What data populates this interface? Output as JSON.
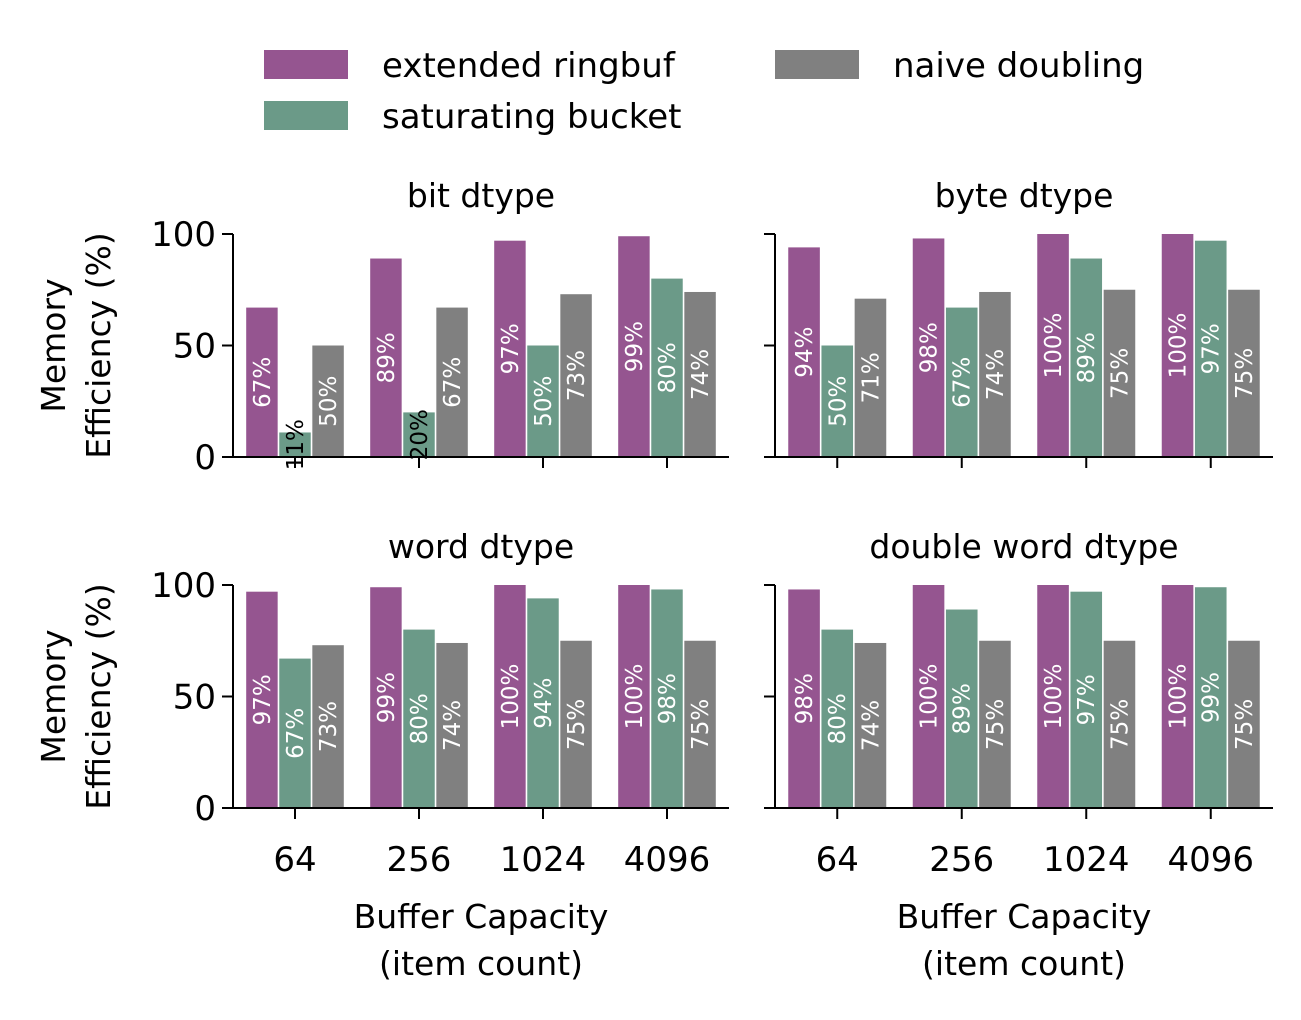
{
  "legend": {
    "items": [
      {
        "label": "extended ringbuf",
        "color": "#955590"
      },
      {
        "label": "saturating bucket",
        "color": "#6b9a88"
      },
      {
        "label": "naive doubling",
        "color": "#808080"
      }
    ]
  },
  "chart_data": {
    "type": "bar",
    "categories": [
      "64",
      "256",
      "1024",
      "4096"
    ],
    "xlabel": "Buffer Capacity\n(item count)",
    "ylabel": "Memory\nEfficiency (%)",
    "ylim": [
      0,
      100
    ],
    "yticks": [
      0,
      50,
      100
    ],
    "legend_position": "top",
    "value_label_suffix": "%",
    "panels": [
      {
        "title": "bit dtype",
        "series": [
          {
            "name": "extended ringbuf",
            "color": "#955590",
            "values": [
              67,
              89,
              97,
              99
            ]
          },
          {
            "name": "saturating bucket",
            "color": "#6b9a88",
            "values": [
              11,
              20,
              50,
              80
            ]
          },
          {
            "name": "naive doubling",
            "color": "#808080",
            "values": [
              50,
              67,
              73,
              74
            ]
          }
        ]
      },
      {
        "title": "byte dtype",
        "series": [
          {
            "name": "extended ringbuf",
            "color": "#955590",
            "values": [
              94,
              98,
              100,
              100
            ]
          },
          {
            "name": "saturating bucket",
            "color": "#6b9a88",
            "values": [
              50,
              67,
              89,
              97
            ]
          },
          {
            "name": "naive doubling",
            "color": "#808080",
            "values": [
              71,
              74,
              75,
              75
            ]
          }
        ]
      },
      {
        "title": "word dtype",
        "series": [
          {
            "name": "extended ringbuf",
            "color": "#955590",
            "values": [
              97,
              99,
              100,
              100
            ]
          },
          {
            "name": "saturating bucket",
            "color": "#6b9a88",
            "values": [
              67,
              80,
              94,
              98
            ]
          },
          {
            "name": "naive doubling",
            "color": "#808080",
            "values": [
              73,
              74,
              75,
              75
            ]
          }
        ]
      },
      {
        "title": "double word dtype",
        "series": [
          {
            "name": "extended ringbuf",
            "color": "#955590",
            "values": [
              98,
              100,
              100,
              100
            ]
          },
          {
            "name": "saturating bucket",
            "color": "#6b9a88",
            "values": [
              80,
              89,
              97,
              99
            ]
          },
          {
            "name": "naive doubling",
            "color": "#808080",
            "values": [
              74,
              75,
              75,
              75
            ]
          }
        ]
      }
    ]
  }
}
